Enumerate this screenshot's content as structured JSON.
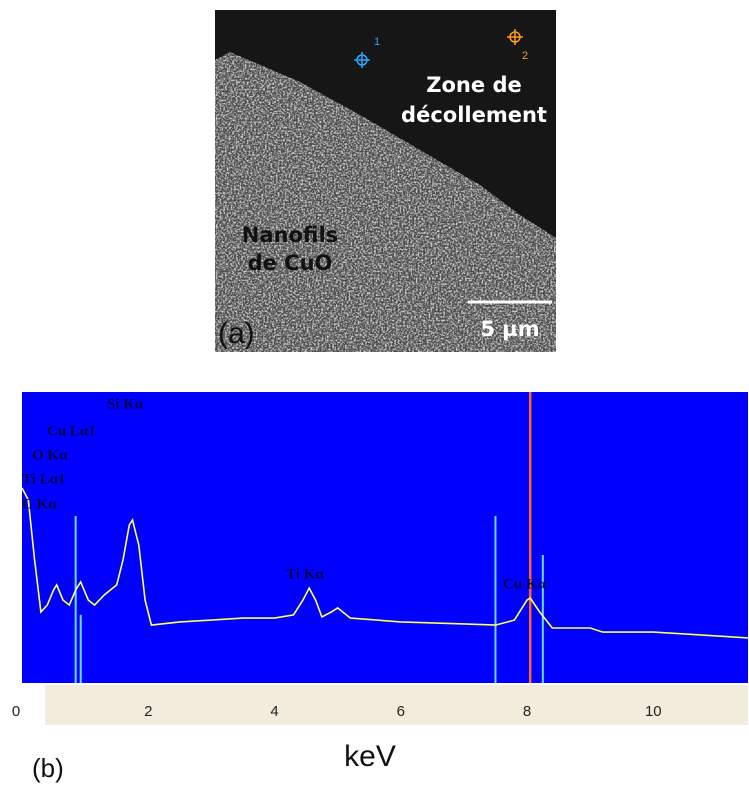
{
  "figure_a": {
    "panel_label": "(a)",
    "zone_label": [
      "Zone de",
      "décollement"
    ],
    "nanowire_label": [
      "Nanofils",
      "de CuO"
    ],
    "scale_bar": "5 µm",
    "points": [
      "1",
      "2"
    ]
  },
  "chart_data": {
    "type": "line",
    "panel_label": "(b)",
    "xlabel": "keV",
    "xlim": [
      0,
      11.5
    ],
    "xticks": [
      0,
      2,
      4,
      6,
      8,
      10
    ],
    "ylim": [
      0,
      100
    ],
    "background": "#0000ff",
    "axis_band": "#f2ecdc",
    "x": [
      0,
      0.1,
      0.2,
      0.3,
      0.4,
      0.5,
      0.55,
      0.65,
      0.75,
      0.85,
      0.93,
      1.05,
      1.15,
      1.3,
      1.5,
      1.6,
      1.7,
      1.75,
      1.85,
      1.95,
      2.05,
      2.5,
      3,
      3.5,
      4,
      4.3,
      4.45,
      4.55,
      4.65,
      4.75,
      4.9,
      5.0,
      5.2,
      6,
      7,
      7.5,
      7.8,
      8.0,
      8.05,
      8.2,
      8.4,
      9,
      9.2,
      10,
      11,
      11.5
    ],
    "series": [
      {
        "color": "#ffff55",
        "values": [
          67.0,
          62.9,
          42.3,
          24.4,
          26.8,
          32.0,
          33.7,
          28.5,
          26.8,
          32.0,
          34.7,
          28.5,
          26.8,
          30.2,
          33.7,
          42.3,
          54.3,
          56.0,
          47.4,
          28.5,
          19.9,
          21.0,
          21.6,
          22.3,
          22.3,
          23.4,
          28.5,
          32.6,
          28.5,
          22.7,
          24.4,
          25.8,
          22.3,
          21.0,
          20.3,
          19.9,
          21.6,
          28.5,
          29.2,
          24.4,
          18.9,
          18.9,
          17.5,
          17.5,
          16.2,
          15.5
        ]
      }
    ],
    "peak_markers": {
      "color": "#66ddff",
      "x": [
        0.85,
        0.93,
        7.5,
        8.25
      ],
      "values": [
        57.4,
        23.4,
        57.4,
        44.0
      ]
    },
    "cursor": {
      "color": "#ff6622",
      "x": 8.05
    },
    "annotations": [
      "C Kα",
      "Ti Lα1",
      "O Kα",
      "Cu Lα1",
      "Si Kα",
      "Ti Kα",
      "Cu Kα"
    ]
  }
}
